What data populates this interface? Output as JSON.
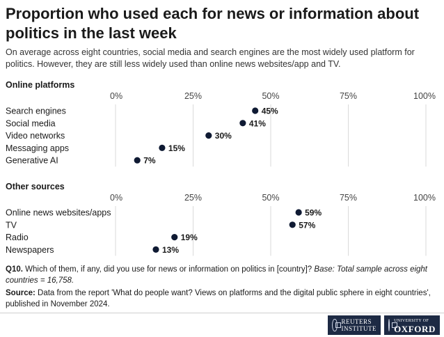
{
  "title": "Proportion who used each for news or information about politics in the last week",
  "subtitle": "On average across eight countries, social media and search engines are the most widely used platform for politics. However, they are still less widely used than online news websites/app and TV.",
  "colors": {
    "dot": "#0f1a33",
    "grid": "#d9d9d9",
    "logo_bg": "#1d2a44"
  },
  "chart_data": [
    {
      "type": "scatter",
      "title": "Online platforms",
      "xlim": [
        0,
        100
      ],
      "ticks": [
        0,
        25,
        50,
        75,
        100
      ],
      "tick_labels": [
        "0%",
        "25%",
        "50%",
        "75%",
        "100%"
      ],
      "categories": [
        "Search engines",
        "Social media",
        "Video networks",
        "Messaging apps",
        "Generative AI"
      ],
      "values": [
        45,
        41,
        30,
        15,
        7
      ],
      "value_labels": [
        "45%",
        "41%",
        "30%",
        "15%",
        "7%"
      ]
    },
    {
      "type": "scatter",
      "title": "Other sources",
      "xlim": [
        0,
        100
      ],
      "ticks": [
        0,
        25,
        50,
        75,
        100
      ],
      "tick_labels": [
        "0%",
        "25%",
        "50%",
        "75%",
        "100%"
      ],
      "categories": [
        "Online news websites/apps",
        "TV",
        "Radio",
        "Newspapers"
      ],
      "values": [
        59,
        57,
        19,
        13
      ],
      "value_labels": [
        "59%",
        "57%",
        "19%",
        "13%"
      ]
    }
  ],
  "notes": {
    "question_label": "Q10.",
    "question_text": "Which of them, if any, did you use for news or information on politics in [country]?",
    "base_text": "Base: Total sample across eight countries = 16,758.",
    "source_label": "Source:",
    "source_text": "Data from the report 'What do people want? Views on platforms and the digital public sphere in eight countries', published in November 2024."
  },
  "logos": {
    "reuters_line1": "REUTERS",
    "reuters_line2": "INSTITUTE",
    "oxford_small": "UNIVERSITY OF",
    "oxford_big": "OXFORD"
  }
}
